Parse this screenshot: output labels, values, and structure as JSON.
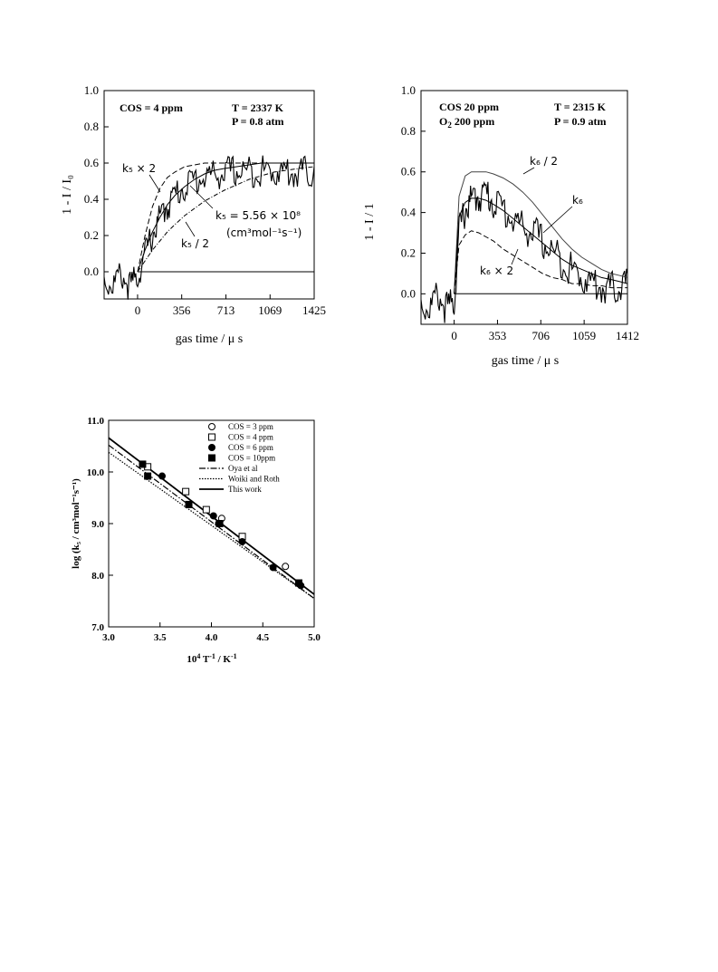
{
  "chart_data": [
    {
      "type": "line",
      "id": "a",
      "title_left": "COS = 4 ppm",
      "title_right_1": "T = 2337 K",
      "title_right_2": "P = 0.8 atm",
      "xlabel": "gas time / μ s",
      "ylabel": "1 - I / I₀",
      "xlim": [
        -270,
        1425
      ],
      "ylim": [
        -0.15,
        1.0
      ],
      "x_ticks": [
        0,
        356,
        713,
        1069,
        1425
      ],
      "y_ticks": [
        "0.0",
        "0.2",
        "0.4",
        "0.6",
        "0.8",
        "1.0"
      ],
      "annotations": {
        "times2": "k₅ × 2",
        "fit_1": "k₅ = 5.56 × 10⁸",
        "fit_2": "(cm³mol⁻¹s⁻¹)",
        "half": "k₅ / 2"
      },
      "series": [
        {
          "style": "noisy",
          "x": [
            -270,
            -200,
            -130,
            -60,
            0,
            60,
            120,
            180,
            240,
            300,
            380,
            460,
            540,
            620,
            700,
            780,
            860,
            940,
            1020,
            1100,
            1180,
            1260,
            1340,
            1425
          ],
          "values": [
            0.0,
            -0.03,
            0.03,
            -0.04,
            0.02,
            0.14,
            0.25,
            0.34,
            0.41,
            0.47,
            0.52,
            0.55,
            0.57,
            0.58,
            0.59,
            0.6,
            0.6,
            0.6,
            0.6,
            0.6,
            0.6,
            0.59,
            0.6,
            0.58
          ]
        },
        {
          "style": "dashed",
          "x": [
            0,
            60,
            120,
            180,
            240,
            300,
            380,
            460,
            540,
            620,
            700,
            800,
            900,
            1000,
            1100,
            1200,
            1300,
            1425
          ],
          "values": [
            0.0,
            0.2,
            0.36,
            0.46,
            0.52,
            0.55,
            0.58,
            0.59,
            0.6,
            0.6,
            0.6,
            0.6,
            0.6,
            0.6,
            0.6,
            0.6,
            0.6,
            0.6
          ]
        },
        {
          "style": "solid",
          "x": [
            0,
            60,
            120,
            180,
            240,
            300,
            380,
            460,
            540,
            620,
            700,
            800,
            900,
            1000,
            1100,
            1200,
            1300,
            1425
          ],
          "values": [
            0.0,
            0.12,
            0.22,
            0.3,
            0.37,
            0.42,
            0.47,
            0.51,
            0.54,
            0.56,
            0.57,
            0.58,
            0.59,
            0.6,
            0.6,
            0.6,
            0.6,
            0.6
          ]
        },
        {
          "style": "dashdot",
          "x": [
            0,
            60,
            120,
            180,
            240,
            300,
            380,
            460,
            540,
            620,
            700,
            800,
            900,
            1000,
            1100,
            1200,
            1300,
            1425
          ],
          "values": [
            0.0,
            0.06,
            0.12,
            0.17,
            0.22,
            0.26,
            0.31,
            0.35,
            0.39,
            0.42,
            0.45,
            0.48,
            0.51,
            0.53,
            0.55,
            0.56,
            0.57,
            0.58
          ]
        },
        {
          "style": "baseline",
          "x": [
            0,
            1425
          ],
          "values": [
            0.0,
            0.0
          ]
        }
      ]
    },
    {
      "type": "line",
      "id": "b",
      "title_left_1": "COS   20  ppm",
      "title_left_2a": "O",
      "title_left_2sub": "2",
      "title_left_2b": "   200  ppm",
      "title_right_1": "T = 2315 K",
      "title_right_2": "P = 0.9 atm",
      "xlabel": "gas time / μ s",
      "ylabel": "1 - I / 1",
      "xlim": [
        -270,
        1412
      ],
      "ylim": [
        -0.15,
        1.0
      ],
      "x_ticks": [
        0,
        353,
        706,
        1059,
        1412
      ],
      "y_ticks": [
        "0.0",
        "0.2",
        "0.4",
        "0.6",
        "0.8",
        "1.0"
      ],
      "annotations": {
        "half": "k₆ / 2",
        "k6": "k₆",
        "times2": "k₆ × 2"
      },
      "series": [
        {
          "style": "noisy",
          "x": [
            -270,
            -200,
            -130,
            -60,
            0,
            40,
            90,
            140,
            200,
            260,
            320,
            400,
            480,
            560,
            640,
            720,
            800,
            880,
            960,
            1040,
            1120,
            1200,
            1280,
            1350,
            1412
          ],
          "values": [
            0.0,
            -0.03,
            0.04,
            -0.03,
            0.0,
            0.35,
            0.46,
            0.5,
            0.53,
            0.54,
            0.5,
            0.46,
            0.41,
            0.37,
            0.35,
            0.3,
            0.25,
            0.21,
            0.16,
            0.13,
            0.1,
            0.08,
            0.07,
            0.08,
            0.1
          ]
        },
        {
          "style": "smooth",
          "x": [
            0,
            40,
            90,
            140,
            200,
            260,
            320,
            400,
            480,
            560,
            640,
            720,
            800,
            880,
            960,
            1040,
            1120,
            1200,
            1280,
            1350,
            1412
          ],
          "values": [
            0.0,
            0.48,
            0.58,
            0.6,
            0.6,
            0.6,
            0.59,
            0.57,
            0.54,
            0.5,
            0.45,
            0.39,
            0.33,
            0.27,
            0.22,
            0.18,
            0.15,
            0.12,
            0.1,
            0.09,
            0.08
          ]
        },
        {
          "style": "solid",
          "x": [
            0,
            40,
            90,
            140,
            200,
            260,
            320,
            400,
            480,
            560,
            640,
            720,
            800,
            880,
            960,
            1040,
            1120,
            1200,
            1280,
            1350,
            1412
          ],
          "values": [
            0.0,
            0.38,
            0.45,
            0.47,
            0.47,
            0.46,
            0.44,
            0.41,
            0.37,
            0.33,
            0.29,
            0.25,
            0.21,
            0.17,
            0.14,
            0.12,
            0.1,
            0.08,
            0.07,
            0.06,
            0.05
          ]
        },
        {
          "style": "dashed",
          "x": [
            0,
            40,
            90,
            140,
            200,
            260,
            320,
            400,
            480,
            560,
            640,
            720,
            800,
            880,
            960,
            1040,
            1120,
            1200,
            1280,
            1350,
            1412
          ],
          "values": [
            0.0,
            0.24,
            0.29,
            0.31,
            0.3,
            0.28,
            0.26,
            0.22,
            0.19,
            0.16,
            0.13,
            0.1,
            0.08,
            0.07,
            0.05,
            0.05,
            0.04,
            0.04,
            0.03,
            0.03,
            0.03
          ]
        },
        {
          "style": "baseline",
          "x": [
            0,
            1412
          ],
          "values": [
            0.0,
            0.0
          ]
        }
      ]
    },
    {
      "type": "scatter",
      "id": "c",
      "xlabel_base": "10",
      "xlabel_sup": "4",
      "xlabel_rest": " T",
      "xlabel_sup2": "-1",
      "xlabel_rest2": " / K",
      "xlabel_sup3": "-1",
      "ylabel": "log (k₅ / cm³mol⁻¹s⁻¹)",
      "xlim": [
        3.0,
        5.0
      ],
      "ylim": [
        7.0,
        11.0
      ],
      "x_ticks": [
        "3.0",
        "3.5",
        "4.0",
        "4.5",
        "5.0"
      ],
      "y_ticks": [
        "7.0",
        "8.0",
        "9.0",
        "10.0",
        "11.0"
      ],
      "legend": [
        "COS = 3 ppm",
        "COS = 4 ppm",
        "COS = 6 ppm",
        "COS = 10ppm",
        "Oya et al",
        "Woiki and Roth",
        "This work"
      ],
      "legend_position": "top-right",
      "series": [
        {
          "name": "COS = 3 ppm",
          "marker": "open-circle",
          "x": [
            4.1,
            4.72
          ],
          "values": [
            9.1,
            8.17
          ]
        },
        {
          "name": "COS = 4 ppm",
          "marker": "open-square",
          "x": [
            3.38,
            3.75,
            3.95,
            4.3
          ],
          "values": [
            10.1,
            9.62,
            9.27,
            8.75
          ]
        },
        {
          "name": "COS = 6 ppm",
          "marker": "filled-circle",
          "x": [
            3.52,
            4.02,
            4.07,
            4.3,
            4.6,
            4.87
          ],
          "values": [
            9.92,
            9.15,
            9.0,
            8.65,
            8.15,
            7.8
          ]
        },
        {
          "name": "COS = 10ppm",
          "marker": "filled-square",
          "x": [
            3.33,
            3.38,
            3.78,
            4.08,
            4.85
          ],
          "values": [
            10.15,
            9.92,
            9.37,
            9.0,
            7.85
          ]
        },
        {
          "name": "Oya et al",
          "style": "dashdot",
          "x": [
            3.0,
            5.0
          ],
          "values": [
            10.52,
            7.55
          ]
        },
        {
          "name": "Woiki and Roth",
          "style": "dotted",
          "x": [
            3.0,
            5.0
          ],
          "values": [
            10.38,
            7.55
          ]
        },
        {
          "name": "This work",
          "style": "solid",
          "x": [
            3.0,
            5.0
          ],
          "values": [
            10.66,
            7.63
          ]
        }
      ]
    }
  ]
}
